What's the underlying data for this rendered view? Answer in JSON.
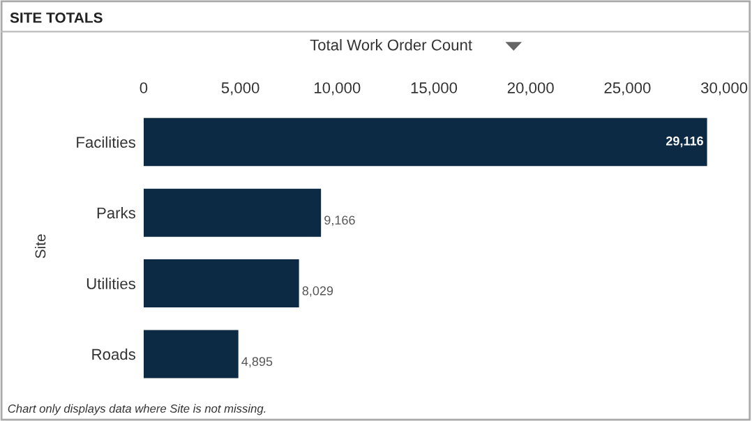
{
  "chart_data": {
    "type": "bar",
    "orientation": "horizontal",
    "title": "SITE TOTALS",
    "xlabel": "Total Work Order Count",
    "ylabel": "Site",
    "categories": [
      "Facilities",
      "Parks",
      "Utilities",
      "Roads"
    ],
    "values": [
      29116,
      9166,
      8029,
      4895
    ],
    "value_labels": [
      "29,116",
      "9,166",
      "8,029",
      "4,895"
    ],
    "color": "#0d2a45",
    "xlim": [
      0,
      30000
    ],
    "xticks": [
      0,
      {
        "value": 5000,
        "label": "5,000"
      },
      {
        "value": 10000,
        "label": "10,000"
      },
      {
        "value": 15000,
        "label": "15,000"
      },
      {
        "value": 20000,
        "label": "20,000"
      },
      {
        "value": 25000,
        "label": "25,000"
      },
      {
        "value": 30000,
        "label": "30,000"
      }
    ],
    "grid": false,
    "legend": false,
    "annotations": [
      "Chart only displays data where Site is not missing."
    ]
  }
}
